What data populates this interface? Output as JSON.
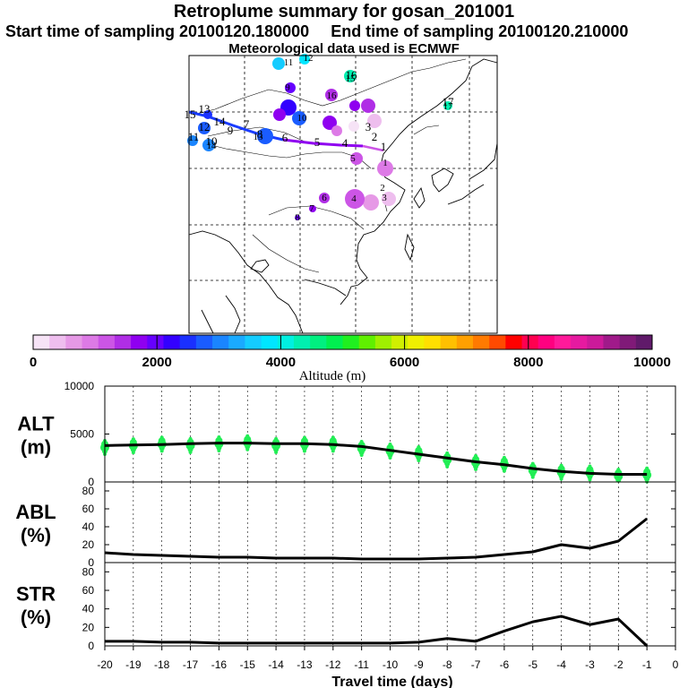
{
  "header": {
    "title": "Retroplume summary for gosan_201001",
    "start_label": "Start time of sampling 20100120.180000",
    "end_label": "End time of sampling 20100120.210000",
    "met_label": "Meteorological data used is ECMWF"
  },
  "map": {
    "path_labels": [
      "17",
      "1",
      "2",
      "3",
      "4",
      "5",
      "6",
      "7",
      "8",
      "9",
      "10",
      "11",
      "12",
      "13",
      "14",
      "15",
      "16"
    ],
    "cluster_labels": [
      "1",
      "2",
      "3",
      "4",
      "5",
      "6",
      "7",
      "8",
      "9",
      "10",
      "11",
      "12",
      "13",
      "14",
      "15",
      "16",
      "17"
    ]
  },
  "colorbar": {
    "ticks": [
      "0",
      "2000",
      "4000",
      "6000",
      "8000",
      "10000"
    ],
    "label": "Altitude (m)",
    "colors": [
      "#f6e3f6",
      "#eebeee",
      "#e699e6",
      "#dd7ae6",
      "#cc55e6",
      "#b02ee6",
      "#8f00f0",
      "#6600ff",
      "#3300ff",
      "#1a30ff",
      "#1a5cff",
      "#1a85ff",
      "#1aaaff",
      "#14ccff",
      "#00e6ff",
      "#00f0e0",
      "#00f0b0",
      "#00f080",
      "#00f050",
      "#20f020",
      "#60f000",
      "#a0f000",
      "#d0f000",
      "#f0f000",
      "#ffe000",
      "#ffc000",
      "#ffa000",
      "#ff7a00",
      "#ff4a00",
      "#ff0000",
      "#ff0050",
      "#ff0080",
      "#ff1a9a",
      "#e61aa0",
      "#cc1a9a",
      "#a01a8a",
      "#801a78",
      "#601a6a"
    ]
  },
  "chart_data": [
    {
      "type": "line",
      "title": "ALT",
      "ylabel": "(m)",
      "ylim": [
        0,
        10000
      ],
      "yticks": [
        "0",
        "5000",
        "10000"
      ],
      "x": [
        -20,
        -19,
        -18,
        -17,
        -16,
        -15,
        -14,
        -13,
        -12,
        -11,
        -10,
        -9,
        -8,
        -7,
        -6,
        -5,
        -4,
        -3,
        -2,
        -1
      ],
      "values": [
        3800,
        3850,
        3900,
        4000,
        4050,
        4050,
        4000,
        4000,
        3900,
        3700,
        3300,
        2900,
        2500,
        2100,
        1800,
        1400,
        1100,
        900,
        800,
        800
      ],
      "scatter_color": "#22ee55"
    },
    {
      "type": "line",
      "title": "ABL",
      "ylabel": "(%)",
      "ylim": [
        0,
        90
      ],
      "yticks": [
        "0",
        "20",
        "40",
        "60",
        "80"
      ],
      "x": [
        -20,
        -19,
        -18,
        -17,
        -16,
        -15,
        -14,
        -13,
        -12,
        -11,
        -10,
        -9,
        -8,
        -7,
        -6,
        -5,
        -4,
        -3,
        -2,
        -1
      ],
      "values": [
        11,
        9,
        8,
        7,
        6,
        6,
        5,
        5,
        5,
        4,
        4,
        4,
        5,
        6,
        9,
        12,
        20,
        16,
        24,
        49
      ]
    },
    {
      "type": "line",
      "title": "STR",
      "ylabel": "(%)",
      "ylim": [
        0,
        90
      ],
      "yticks": [
        "0",
        "20",
        "40",
        "60",
        "80"
      ],
      "x": [
        -20,
        -19,
        -18,
        -17,
        -16,
        -15,
        -14,
        -13,
        -12,
        -11,
        -10,
        -9,
        -8,
        -7,
        -6,
        -5,
        -4,
        -3,
        -2,
        -1
      ],
      "values": [
        5,
        5,
        4,
        4,
        3,
        3,
        3,
        3,
        3,
        3,
        3,
        4,
        8,
        5,
        16,
        26,
        32,
        23,
        29,
        0
      ]
    }
  ],
  "xaxis": {
    "ticks": [
      "-20",
      "-19",
      "-18",
      "-17",
      "-16",
      "-15",
      "-14",
      "-13",
      "-12",
      "-11",
      "-10",
      "-9",
      "-8",
      "-7",
      "-6",
      "-5",
      "-4",
      "-3",
      "-2",
      "-1",
      "0"
    ],
    "label": "Travel time (days)"
  }
}
